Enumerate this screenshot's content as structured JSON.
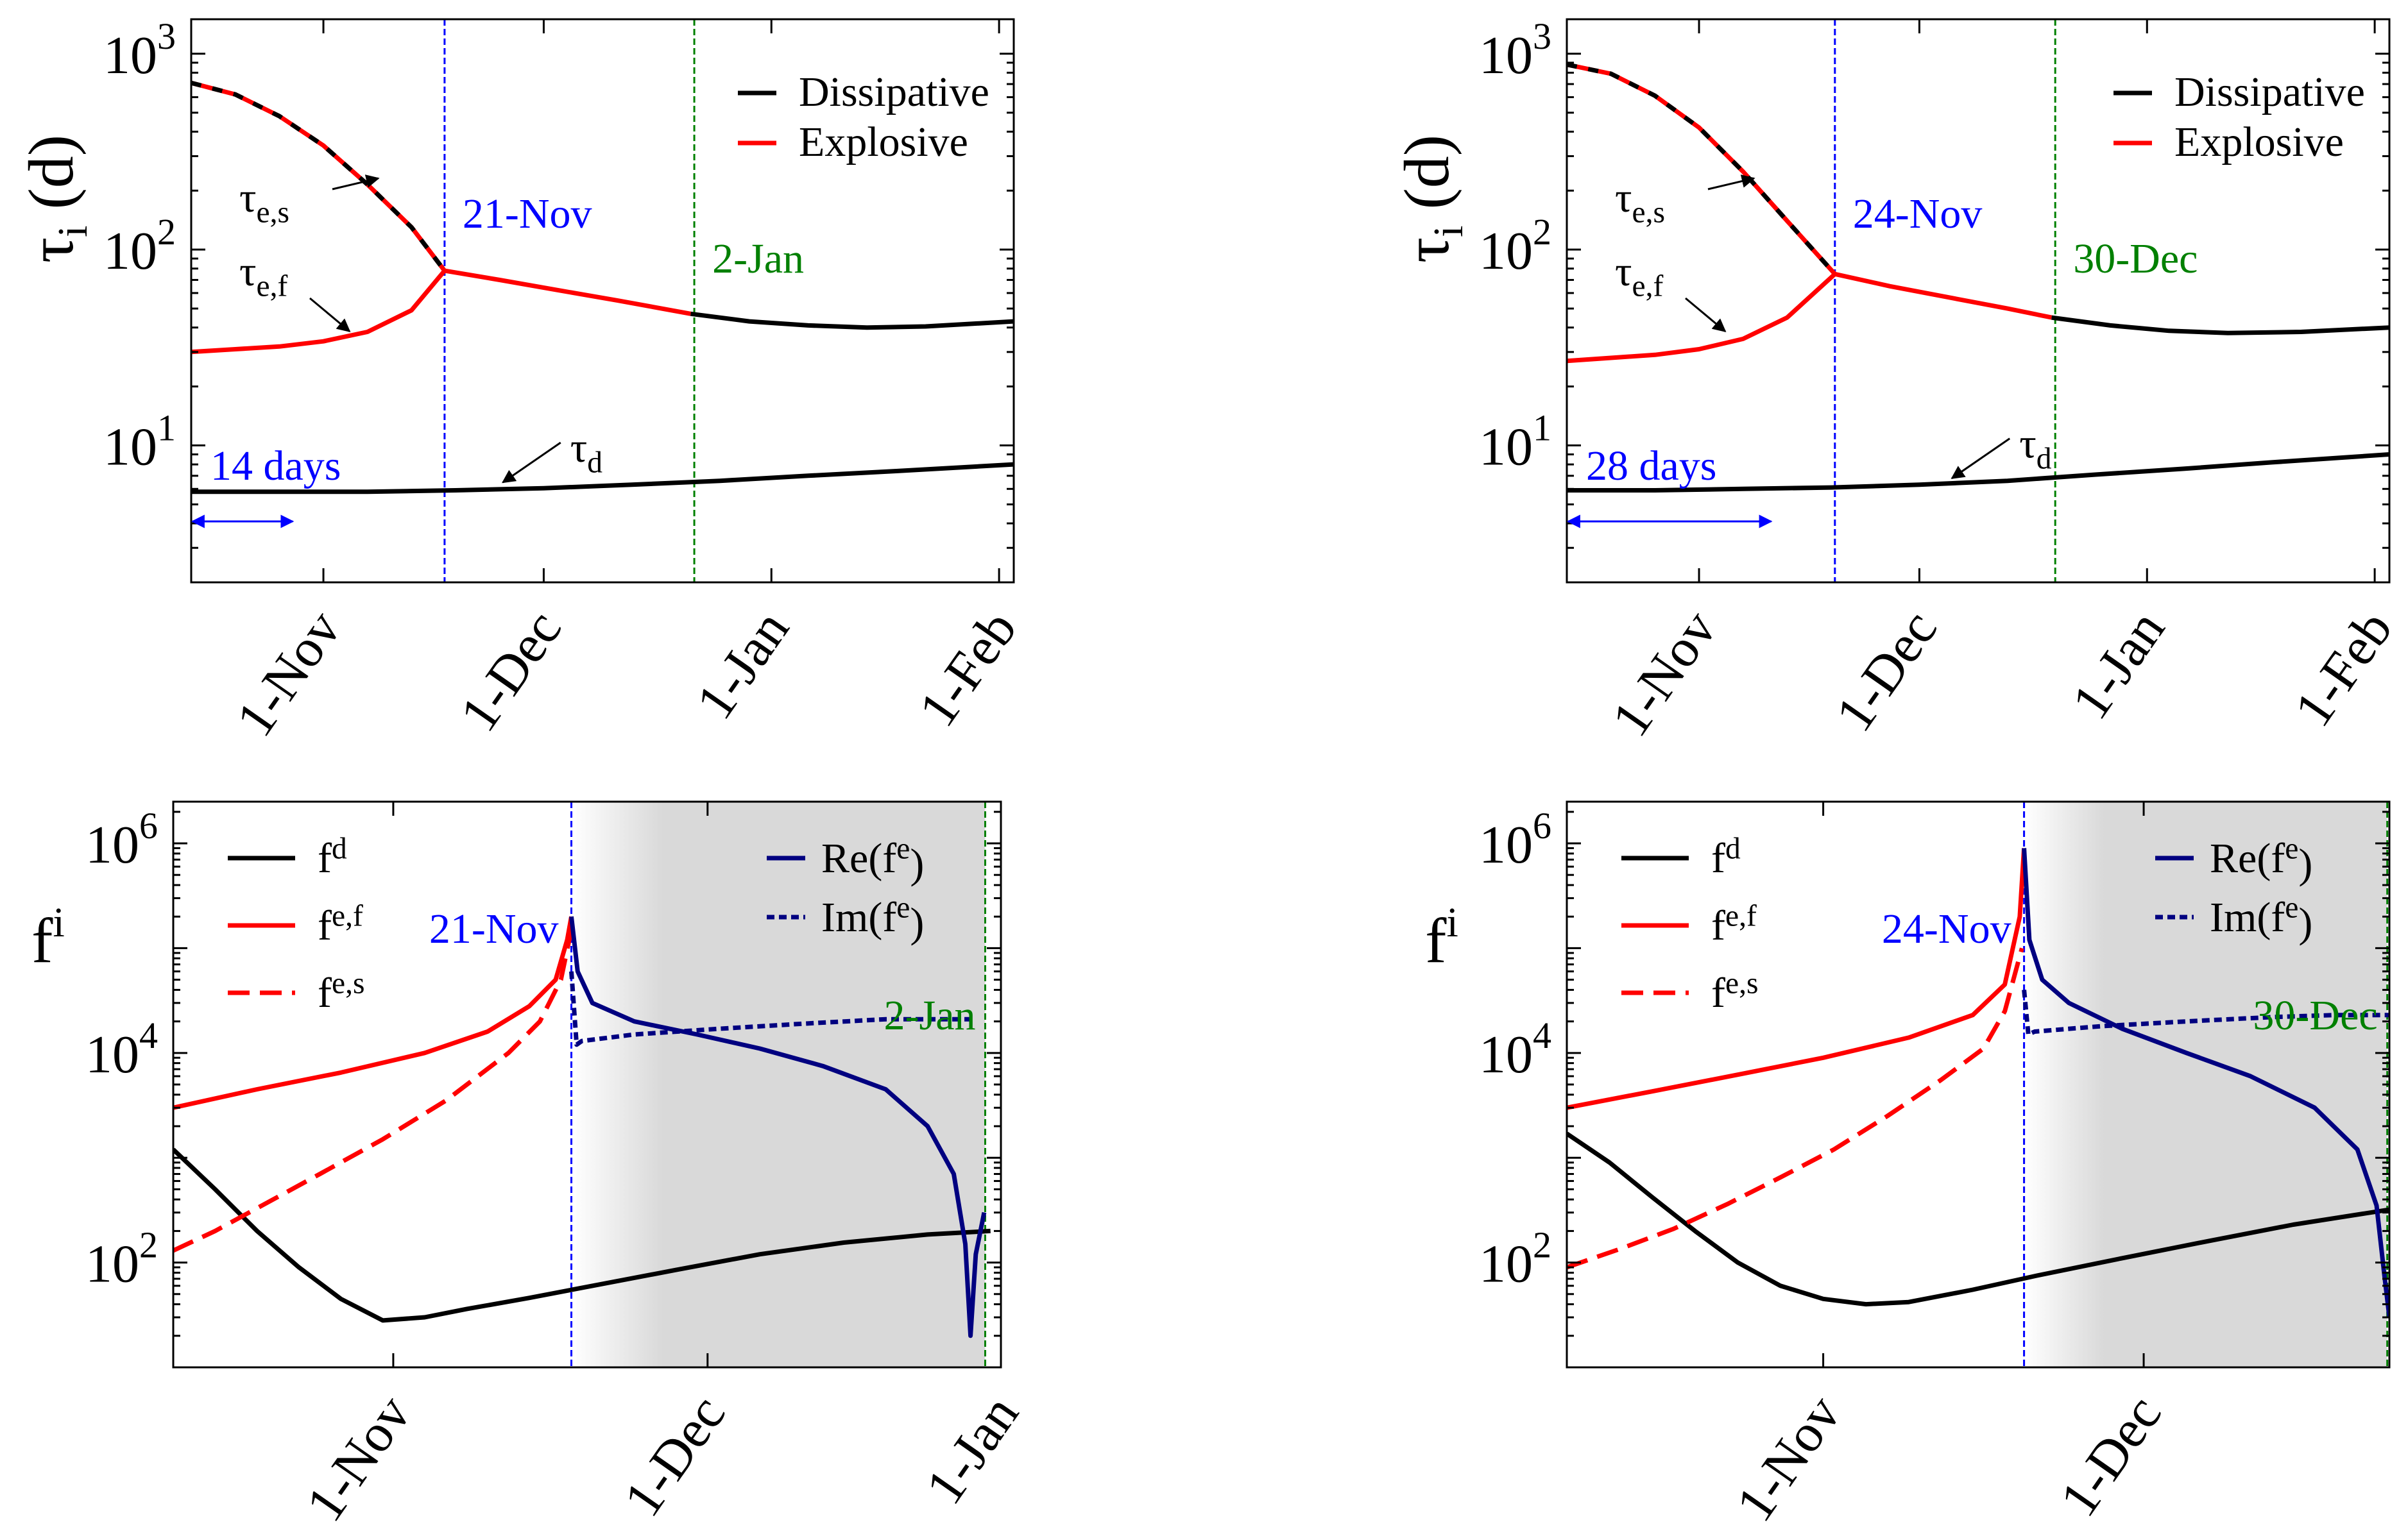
{
  "chart_data": [
    {
      "id": "tl",
      "type": "line",
      "yscale": "log",
      "ylim": [
        2,
        1500
      ],
      "xlim": [
        0,
        112
      ],
      "ylabel": "τ",
      "ylabel_sub": "i",
      "ylabel_unit": "(d)",
      "yticks": [
        {
          "v": 10,
          "base": "10",
          "exp": "1"
        },
        {
          "v": 100,
          "base": "10",
          "exp": "2"
        },
        {
          "v": 1000,
          "base": "10",
          "exp": "3"
        }
      ],
      "xticks": [
        {
          "v": 18,
          "label": "1-Nov"
        },
        {
          "v": 48,
          "label": "1-Dec"
        },
        {
          "v": 79,
          "label": "1-Jan"
        },
        {
          "v": 110,
          "label": "1-Feb"
        }
      ],
      "legend": [
        {
          "name": "Dissipative",
          "color": "#000000"
        },
        {
          "name": "Explosive",
          "color": "#ff0000"
        }
      ],
      "series": [
        {
          "name": "τ_e,s",
          "color": "#ff0000",
          "dashed_overlay": true,
          "x": [
            0,
            6,
            12,
            18,
            24,
            30,
            34.5
          ],
          "y": [
            710,
            620,
            480,
            340,
            215,
            130,
            78
          ]
        },
        {
          "name": "τ_e,f",
          "color": "#ff0000",
          "x": [
            0,
            6,
            12,
            18,
            24,
            30,
            34.5
          ],
          "y": [
            30,
            31,
            32,
            34,
            38,
            49,
            78
          ]
        },
        {
          "name": "explosive-after",
          "color": "#ff0000",
          "x": [
            34.5,
            42,
            50,
            58,
            68
          ],
          "y": [
            78,
            70,
            62,
            55,
            47
          ]
        },
        {
          "name": "dissipative-after",
          "color": "#000000",
          "x": [
            68,
            76,
            84,
            92,
            100,
            112
          ],
          "y": [
            47,
            43,
            41,
            40,
            40.5,
            43
          ]
        },
        {
          "name": "τ_d",
          "color": "#000000",
          "x": [
            0,
            12,
            24,
            36,
            48,
            60,
            72,
            84,
            96,
            112
          ],
          "y": [
            5.8,
            5.8,
            5.8,
            5.9,
            6.05,
            6.3,
            6.6,
            7.0,
            7.4,
            8.0
          ]
        }
      ],
      "vlines": [
        {
          "x": 34.5,
          "color": "#0000ff",
          "label": "21-Nov"
        },
        {
          "x": 68.5,
          "color": "#008000",
          "label": "2-Jan"
        }
      ],
      "annotations": [
        {
          "text": "τ",
          "sub": "e,s"
        },
        {
          "text": "τ",
          "sub": "e,f"
        },
        {
          "text": "τ",
          "sub": "d"
        }
      ],
      "span_label": "14 days",
      "span_days": 14
    },
    {
      "id": "tr",
      "type": "line",
      "yscale": "log",
      "ylim": [
        2,
        1500
      ],
      "xlim": [
        0,
        112
      ],
      "ylabel": "τ",
      "ylabel_sub": "i",
      "ylabel_unit": "(d)",
      "yticks": [
        {
          "v": 10,
          "base": "10",
          "exp": "1"
        },
        {
          "v": 100,
          "base": "10",
          "exp": "2"
        },
        {
          "v": 1000,
          "base": "10",
          "exp": "3"
        }
      ],
      "xticks": [
        {
          "v": 18,
          "label": "1-Nov"
        },
        {
          "v": 48,
          "label": "1-Dec"
        },
        {
          "v": 79,
          "label": "1-Jan"
        },
        {
          "v": 110,
          "label": "1-Feb"
        }
      ],
      "legend": [
        {
          "name": "Dissipative",
          "color": "#000000"
        },
        {
          "name": "Explosive",
          "color": "#ff0000"
        }
      ],
      "series": [
        {
          "name": "τ_e,s",
          "color": "#ff0000",
          "dashed_overlay": true,
          "x": [
            0,
            6,
            12,
            18,
            24,
            30,
            36.5
          ],
          "y": [
            880,
            790,
            610,
            420,
            250,
            140,
            75
          ]
        },
        {
          "name": "τ_e,f",
          "color": "#ff0000",
          "x": [
            0,
            6,
            12,
            18,
            24,
            30,
            36.5
          ],
          "y": [
            27,
            28,
            29,
            31,
            35,
            45,
            75
          ]
        },
        {
          "name": "explosive-after",
          "color": "#ff0000",
          "x": [
            36.5,
            44,
            52,
            60,
            66
          ],
          "y": [
            75,
            65,
            57,
            50,
            45
          ]
        },
        {
          "name": "dissipative-after",
          "color": "#000000",
          "x": [
            66,
            74,
            82,
            90,
            100,
            112
          ],
          "y": [
            45,
            41,
            38.5,
            37.5,
            38,
            40
          ]
        },
        {
          "name": "τ_d",
          "color": "#000000",
          "x": [
            0,
            12,
            24,
            36,
            48,
            60,
            72,
            84,
            96,
            112
          ],
          "y": [
            5.9,
            5.9,
            6.0,
            6.1,
            6.3,
            6.6,
            7.1,
            7.6,
            8.2,
            9.0
          ]
        }
      ],
      "vlines": [
        {
          "x": 36.5,
          "color": "#0000ff",
          "label": "24-Nov"
        },
        {
          "x": 66.5,
          "color": "#008000",
          "label": "30-Dec"
        }
      ],
      "annotations": [
        {
          "text": "τ",
          "sub": "e,s"
        },
        {
          "text": "τ",
          "sub": "e,f"
        },
        {
          "text": "τ",
          "sub": "d"
        }
      ],
      "span_label": "28 days",
      "span_days": 28
    },
    {
      "id": "bl",
      "type": "line",
      "yscale": "log",
      "ylim": [
        10,
        2500000
      ],
      "xlim": [
        0,
        79
      ],
      "ylabel": "f",
      "ylabel_sup": "i",
      "yticks": [
        {
          "v": 100,
          "base": "10",
          "exp": "2"
        },
        {
          "v": 10000,
          "base": "10",
          "exp": "4"
        },
        {
          "v": 1000000,
          "base": "10",
          "exp": "6"
        }
      ],
      "xticks": [
        {
          "v": 21,
          "label": "1-Nov"
        },
        {
          "v": 51,
          "label": "1-Dec"
        },
        {
          "v": 79,
          "label": "1-Jan"
        }
      ],
      "legend_left": [
        {
          "name": "f",
          "sup": "d",
          "color": "#000000",
          "dash": false
        },
        {
          "name": "f",
          "sup": "e,f",
          "color": "#ff0000",
          "dash": false
        },
        {
          "name": "f",
          "sup": "e,s",
          "color": "#ff0000",
          "dash": true
        }
      ],
      "legend_right": [
        {
          "name": "Re(f",
          "sup": "e",
          "tail": ")",
          "color": "#000080",
          "dash": false
        },
        {
          "name": "Im(f",
          "sup": "e",
          "tail": ")",
          "color": "#000080",
          "dash": true
        }
      ],
      "series": [
        {
          "name": "f^d",
          "color": "#000000",
          "x": [
            0,
            4,
            8,
            12,
            16,
            20,
            24,
            28,
            34,
            40,
            48,
            56,
            64,
            72,
            78
          ],
          "y": [
            1200,
            500,
            200,
            90,
            45,
            28,
            30,
            36,
            46,
            60,
            85,
            120,
            155,
            185,
            200
          ]
        },
        {
          "name": "f^e,f",
          "color": "#ff0000",
          "x": [
            0,
            8,
            16,
            24,
            30,
            34,
            36.5,
            37.6,
            38
          ],
          "y": [
            3000,
            4500,
            6500,
            10000,
            16000,
            28000,
            50000,
            120000,
            200000
          ]
        },
        {
          "name": "f^e,s",
          "color": "#ff0000",
          "dash": true,
          "x": [
            0,
            4,
            8,
            14,
            20,
            26,
            32,
            35,
            37,
            38
          ],
          "y": [
            130,
            200,
            330,
            700,
            1500,
            3500,
            10000,
            20000,
            50000,
            150000
          ]
        },
        {
          "name": "Re(f^e)",
          "color": "#000080",
          "x": [
            38,
            38.6,
            40,
            44,
            50,
            56,
            62,
            68,
            72,
            74.5,
            75.6,
            76.1,
            76.6,
            77.4
          ],
          "y": [
            200000,
            60000,
            30000,
            20000,
            15000,
            11000,
            7500,
            4500,
            2000,
            700,
            150,
            20,
            120,
            300
          ]
        },
        {
          "name": "Im(f^e)",
          "color": "#000080",
          "dash": true,
          "x": [
            38,
            38.5,
            39,
            44,
            52,
            60,
            68,
            76
          ],
          "y": [
            60000,
            12000,
            13000,
            15000,
            17000,
            19000,
            21000,
            21000
          ]
        }
      ],
      "vlines": [
        {
          "x": 38,
          "color": "#0000ff",
          "label": "21-Nov"
        },
        {
          "x": 77.5,
          "color": "#008000",
          "label": "2-Jan"
        }
      ],
      "shade": [
        38,
        77.5
      ]
    },
    {
      "id": "br",
      "type": "line",
      "yscale": "log",
      "ylim": [
        10,
        2500000
      ],
      "xlim": [
        0,
        77
      ],
      "ylabel": "f",
      "ylabel_sup": "i",
      "yticks": [
        {
          "v": 100,
          "base": "10",
          "exp": "2"
        },
        {
          "v": 10000,
          "base": "10",
          "exp": "4"
        },
        {
          "v": 1000000,
          "base": "10",
          "exp": "6"
        }
      ],
      "xticks": [
        {
          "v": 24,
          "label": "1-Nov"
        },
        {
          "v": 54,
          "label": "1-Dec"
        }
      ],
      "legend_left": [
        {
          "name": "f",
          "sup": "d",
          "color": "#000000",
          "dash": false
        },
        {
          "name": "f",
          "sup": "e,f",
          "color": "#ff0000",
          "dash": false
        },
        {
          "name": "f",
          "sup": "e,s",
          "color": "#ff0000",
          "dash": true
        }
      ],
      "legend_right": [
        {
          "name": "Re(f",
          "sup": "e",
          "tail": ")",
          "color": "#000080",
          "dash": false
        },
        {
          "name": "Im(f",
          "sup": "e",
          "tail": ")",
          "color": "#000080",
          "dash": true
        }
      ],
      "series": [
        {
          "name": "f^d",
          "color": "#000000",
          "x": [
            0,
            4,
            8,
            12,
            16,
            20,
            24,
            28,
            32,
            38,
            44,
            52,
            60,
            68,
            77
          ],
          "y": [
            1700,
            900,
            420,
            200,
            100,
            60,
            45,
            40,
            42,
            55,
            75,
            110,
            160,
            230,
            320
          ]
        },
        {
          "name": "f^e,f",
          "color": "#ff0000",
          "x": [
            0,
            8,
            16,
            24,
            32,
            38,
            41,
            42.4,
            42.8
          ],
          "y": [
            3000,
            4300,
            6200,
            9000,
            14000,
            23000,
            45000,
            200000,
            900000
          ]
        },
        {
          "name": "f^e,s",
          "color": "#ff0000",
          "dash": true,
          "x": [
            0,
            5,
            10,
            15,
            20,
            25,
            30,
            35,
            39,
            41,
            42.6
          ],
          "y": [
            90,
            135,
            210,
            360,
            650,
            1200,
            2500,
            5500,
            11000,
            25000,
            100000
          ]
        },
        {
          "name": "Re(f^e)",
          "color": "#000080",
          "x": [
            42.8,
            43.3,
            44.5,
            47,
            52,
            58,
            64,
            70,
            74,
            75.8,
            76.5,
            77
          ],
          "y": [
            900000,
            120000,
            50000,
            30000,
            17000,
            10000,
            6000,
            3000,
            1200,
            350,
            80,
            30
          ]
        },
        {
          "name": "Im(f^e)",
          "color": "#000080",
          "dash": true,
          "x": [
            42.8,
            43.2,
            43.8,
            50,
            58,
            66,
            72,
            76,
            77
          ],
          "y": [
            40000,
            15000,
            16000,
            18000,
            20000,
            22000,
            23000,
            23000,
            23000
          ]
        }
      ],
      "vlines": [
        {
          "x": 42.8,
          "color": "#0000ff",
          "label": "24-Nov"
        },
        {
          "x": 76.8,
          "color": "#008000",
          "label": "30-Dec"
        }
      ],
      "shade": [
        42.8,
        76.8
      ]
    }
  ]
}
